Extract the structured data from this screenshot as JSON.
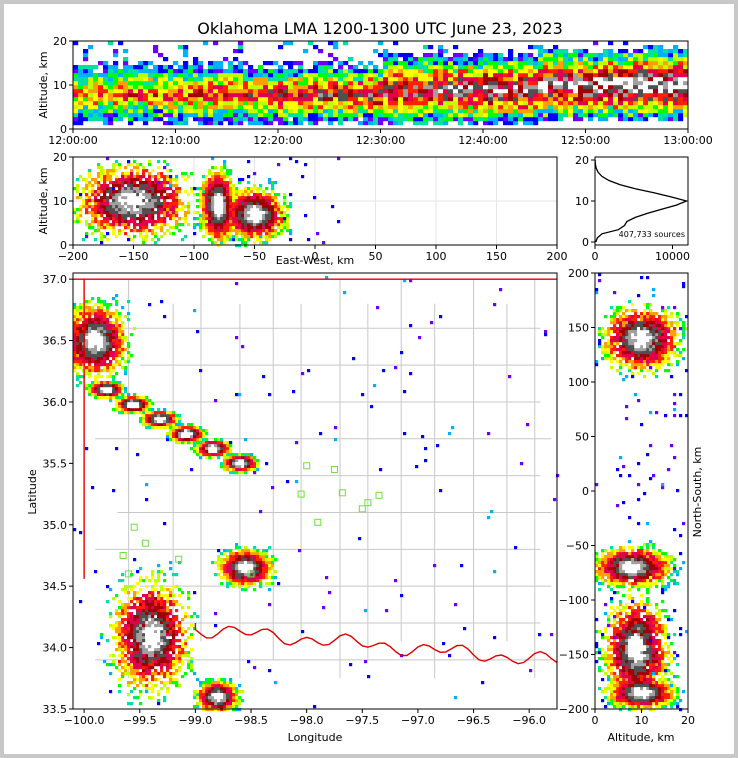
{
  "title": "Oklahoma LMA 1200-1300 UTC June 23, 2023",
  "chart_data": [
    {
      "panel": "time-height",
      "type": "heatmap",
      "ylabel": "Altitude, km",
      "ylim": [
        0,
        20
      ],
      "yticks": [
        "0",
        "10",
        "20"
      ],
      "xticks": [
        "12:00:00",
        "12:10:00",
        "12:20:00",
        "12:30:00",
        "12:40:00",
        "12:50:00",
        "13:00:00"
      ],
      "density_bands": [
        {
          "t_start": "12:00",
          "t_end": "12:30",
          "alt_low": 2,
          "alt_high": 13,
          "peak_alt": 8
        },
        {
          "t_start": "12:30",
          "t_end": "12:45",
          "alt_low": 2,
          "alt_high": 15,
          "peak_alt": 9
        },
        {
          "t_start": "12:45",
          "t_end": "13:00",
          "alt_low": 3,
          "alt_high": 16,
          "peak_alt": 10
        }
      ]
    },
    {
      "panel": "east-west-altitude",
      "type": "heatmap",
      "xlabel": "East-West, km",
      "ylabel": "Altitude, km",
      "xlim": [
        -200,
        200
      ],
      "ylim": [
        0,
        20
      ],
      "xticks": [
        "−200",
        "−150",
        "−100",
        "−50",
        "0",
        "50",
        "100",
        "150",
        "200"
      ],
      "yticks": [
        "0",
        "10",
        "20"
      ],
      "clusters": [
        {
          "x": -150,
          "alt": 10,
          "dx": 42,
          "dalt": 7
        },
        {
          "x": -80,
          "alt": 9,
          "dx": 12,
          "dalt": 7
        },
        {
          "x": -50,
          "alt": 7,
          "dx": 22,
          "dalt": 5
        }
      ]
    },
    {
      "panel": "altitude-histogram",
      "type": "line",
      "ylim": [
        0,
        20
      ],
      "xlim": [
        0,
        12000
      ],
      "xticks": [
        "0",
        "10000"
      ],
      "yticks": [
        "0",
        "10",
        "20"
      ],
      "annotation": "407,733 sources",
      "altitude": [
        0,
        1,
        2,
        3,
        4,
        5,
        6,
        7,
        8,
        9,
        10,
        11,
        12,
        13,
        14,
        15,
        16,
        17,
        18,
        19,
        20
      ],
      "count": [
        100,
        300,
        900,
        3000,
        3800,
        4100,
        5200,
        6800,
        8600,
        10500,
        11800,
        9800,
        7600,
        5200,
        3200,
        1800,
        900,
        400,
        150,
        50,
        10
      ]
    },
    {
      "panel": "plan-view",
      "type": "heatmap",
      "xlabel": "Longitude",
      "ylabel": "Latitude",
      "xlim": [
        -100.1,
        -95.75
      ],
      "ylim": [
        33.5,
        37.05
      ],
      "xticks": [
        "−100.0",
        "−99.5",
        "−99.0",
        "−98.5",
        "−98.0",
        "−97.5",
        "−97.0",
        "−96.5",
        "−96.0"
      ],
      "yticks": [
        "33.5",
        "34.0",
        "34.5",
        "35.0",
        "35.5",
        "36.0",
        "36.5",
        "37.0"
      ],
      "clusters": [
        {
          "lon": -99.9,
          "lat": 36.5,
          "dlon": 0.25,
          "dlat": 0.25
        },
        {
          "lon": -99.4,
          "lat": 34.1,
          "dlon": 0.3,
          "dlat": 0.4
        },
        {
          "lon": -98.8,
          "lat": 33.6,
          "dlon": 0.15,
          "dlat": 0.1
        },
        {
          "lon": -98.55,
          "lat": 34.65,
          "dlon": 0.2,
          "dlat": 0.12
        }
      ],
      "stations": [
        [
          -99.55,
          34.98
        ],
        [
          -99.45,
          34.85
        ],
        [
          -99.65,
          34.75
        ],
        [
          -99.6,
          34.6
        ],
        [
          -99.15,
          34.72
        ],
        [
          -98.5,
          34.6
        ],
        [
          -98.0,
          35.48
        ],
        [
          -97.75,
          35.45
        ],
        [
          -97.68,
          35.26
        ],
        [
          -97.45,
          35.18
        ],
        [
          -97.35,
          35.24
        ],
        [
          -97.5,
          35.13
        ],
        [
          -97.9,
          35.02
        ],
        [
          -98.05,
          35.25
        ]
      ]
    },
    {
      "panel": "altitude-north-south",
      "type": "heatmap",
      "xlabel": "Altitude, km",
      "ylabel": "North-South, km",
      "xlim": [
        0,
        20
      ],
      "ylim": [
        -200,
        200
      ],
      "xticks": [
        "0",
        "10",
        "20"
      ],
      "yticks": [
        "−200",
        "−150",
        "−100",
        "−50",
        "0",
        "50",
        "100",
        "150",
        "200"
      ],
      "clusters": [
        {
          "alt": 10,
          "y": 140,
          "dalt": 7,
          "dy": 25
        },
        {
          "alt": 9,
          "y": -145,
          "dalt": 6,
          "dy": 40
        },
        {
          "alt": 8,
          "y": -70,
          "dalt": 7,
          "dy": 15
        },
        {
          "alt": 10,
          "y": -185,
          "dalt": 6,
          "dy": 12
        }
      ]
    }
  ]
}
